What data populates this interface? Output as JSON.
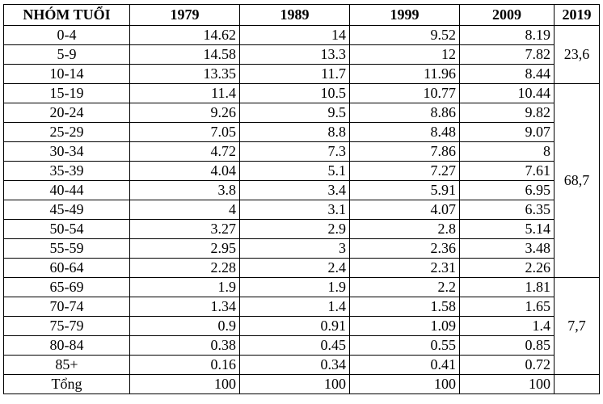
{
  "table": {
    "header": [
      "NHÓM TUỔI",
      "1979",
      "1989",
      "1999",
      "2009",
      "2019"
    ],
    "groups": [
      {
        "value": "23,6",
        "rows": [
          [
            "0-4",
            "14.62",
            "14",
            "9.52",
            "8.19"
          ],
          [
            "5-9",
            "14.58",
            "13.3",
            "12",
            "7.82"
          ],
          [
            "10-14",
            "13.35",
            "11.7",
            "11.96",
            "8.44"
          ]
        ]
      },
      {
        "value": "68,7",
        "rows": [
          [
            "15-19",
            "11.4",
            "10.5",
            "10.77",
            "10.44"
          ],
          [
            "20-24",
            "9.26",
            "9.5",
            "8.86",
            "9.82"
          ],
          [
            "25-29",
            "7.05",
            "8.8",
            "8.48",
            "9.07"
          ],
          [
            "30-34",
            "4.72",
            "7.3",
            "7.86",
            "8"
          ],
          [
            "35-39",
            "4.04",
            "5.1",
            "7.27",
            "7.61"
          ],
          [
            "40-44",
            "3.8",
            "3.4",
            "5.91",
            "6.95"
          ],
          [
            "45-49",
            "4",
            "3.1",
            "4.07",
            "6.35"
          ],
          [
            "50-54",
            "3.27",
            "2.9",
            "2.8",
            "5.14"
          ],
          [
            "55-59",
            "2.95",
            "3",
            "2.36",
            "3.48"
          ],
          [
            "60-64",
            "2.28",
            "2.4",
            "2.31",
            "2.26"
          ]
        ]
      },
      {
        "value": "7,7",
        "rows": [
          [
            "65-69",
            "1.9",
            "1.9",
            "2.2",
            "1.81"
          ],
          [
            "70-74",
            "1.34",
            "1.4",
            "1.58",
            "1.65"
          ],
          [
            "75-79",
            "0.9",
            "0.91",
            "1.09",
            "1.4"
          ],
          [
            "80-84",
            "0.38",
            "0.45",
            "0.55",
            "0.85"
          ],
          [
            "85+",
            "0.16",
            "0.34",
            "0.41",
            "0.72"
          ]
        ]
      }
    ],
    "total": [
      "Tổng",
      "100",
      "100",
      "100",
      "100"
    ]
  }
}
